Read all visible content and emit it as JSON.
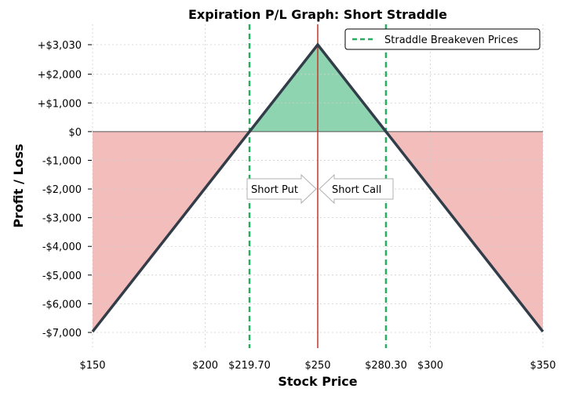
{
  "chart_data": {
    "type": "line",
    "title": "Expiration P/L Graph: Short Straddle",
    "xlabel": "Stock Price",
    "ylabel": "Profit / Loss",
    "xlim": [
      150,
      350
    ],
    "ylim": [
      -7500,
      3500
    ],
    "x_ticks": [
      {
        "value": 150,
        "label": "$150"
      },
      {
        "value": 200,
        "label": "$200"
      },
      {
        "value": 219.7,
        "label": "$219.70"
      },
      {
        "value": 250,
        "label": "$250"
      },
      {
        "value": 280.3,
        "label": "$280.30"
      },
      {
        "value": 300,
        "label": "$300"
      },
      {
        "value": 350,
        "label": "$350"
      }
    ],
    "y_ticks": [
      {
        "value": 3030,
        "label": "+$3,030"
      },
      {
        "value": 2000,
        "label": "+$2,000"
      },
      {
        "value": 1000,
        "label": "+$1,000"
      },
      {
        "value": 0,
        "label": "$0"
      },
      {
        "value": -1000,
        "label": "-$1,000"
      },
      {
        "value": -2000,
        "label": "-$2,000"
      },
      {
        "value": -3000,
        "label": "-$3,000"
      },
      {
        "value": -4000,
        "label": "-$4,000"
      },
      {
        "value": -5000,
        "label": "-$5,000"
      },
      {
        "value": -6000,
        "label": "-$6,000"
      },
      {
        "value": -7000,
        "label": "-$7,000"
      }
    ],
    "series": [
      {
        "x": [
          150,
          250,
          350
        ],
        "y": [
          -6970,
          3030,
          -6970
        ],
        "color": "#333d4a"
      }
    ],
    "strike": {
      "x": 250,
      "color": "#c0392b"
    },
    "breakevens": {
      "values": [
        219.7,
        280.3
      ],
      "color": "#27ae60"
    },
    "fills": {
      "profit_color": "#8fd4b0",
      "loss_color": "#f2bdbb"
    },
    "legend": {
      "position": "top-right",
      "label": "Straddle Breakeven Prices"
    },
    "annotations": [
      {
        "text": "Short Put",
        "direction": "right",
        "y": -2000
      },
      {
        "text": "Short Call",
        "direction": "left",
        "y": -2000
      }
    ],
    "grid": true
  }
}
